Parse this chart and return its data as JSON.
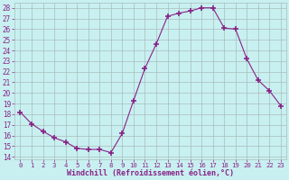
{
  "x": [
    0,
    1,
    2,
    3,
    4,
    5,
    6,
    7,
    8,
    9,
    10,
    11,
    12,
    13,
    14,
    15,
    16,
    17,
    18,
    19,
    20,
    21,
    22,
    23
  ],
  "y": [
    18.2,
    17.1,
    16.4,
    15.8,
    15.4,
    14.8,
    14.7,
    14.7,
    14.4,
    16.2,
    19.3,
    22.3,
    24.6,
    27.2,
    27.5,
    27.7,
    28.0,
    28.0,
    26.1,
    26.0,
    23.2,
    21.2,
    20.2,
    18.8
  ],
  "line_color": "#882288",
  "marker": "+",
  "marker_size": 4,
  "marker_lw": 1.2,
  "bg_color": "#c8f0f0",
  "grid_color": "#aabbbb",
  "ylabel_ticks": [
    14,
    15,
    16,
    17,
    18,
    19,
    20,
    21,
    22,
    23,
    24,
    25,
    26,
    27,
    28
  ],
  "ylim": [
    13.8,
    28.5
  ],
  "xlim": [
    -0.5,
    23.5
  ],
  "xlabel": "Windchill (Refroidissement éolien,°C)",
  "xlabel_color": "#882288",
  "tick_color": "#882288",
  "ytick_font_size": 5.5,
  "xtick_font_size": 5.2,
  "xlabel_font_size": 6.0,
  "line_width": 0.8
}
